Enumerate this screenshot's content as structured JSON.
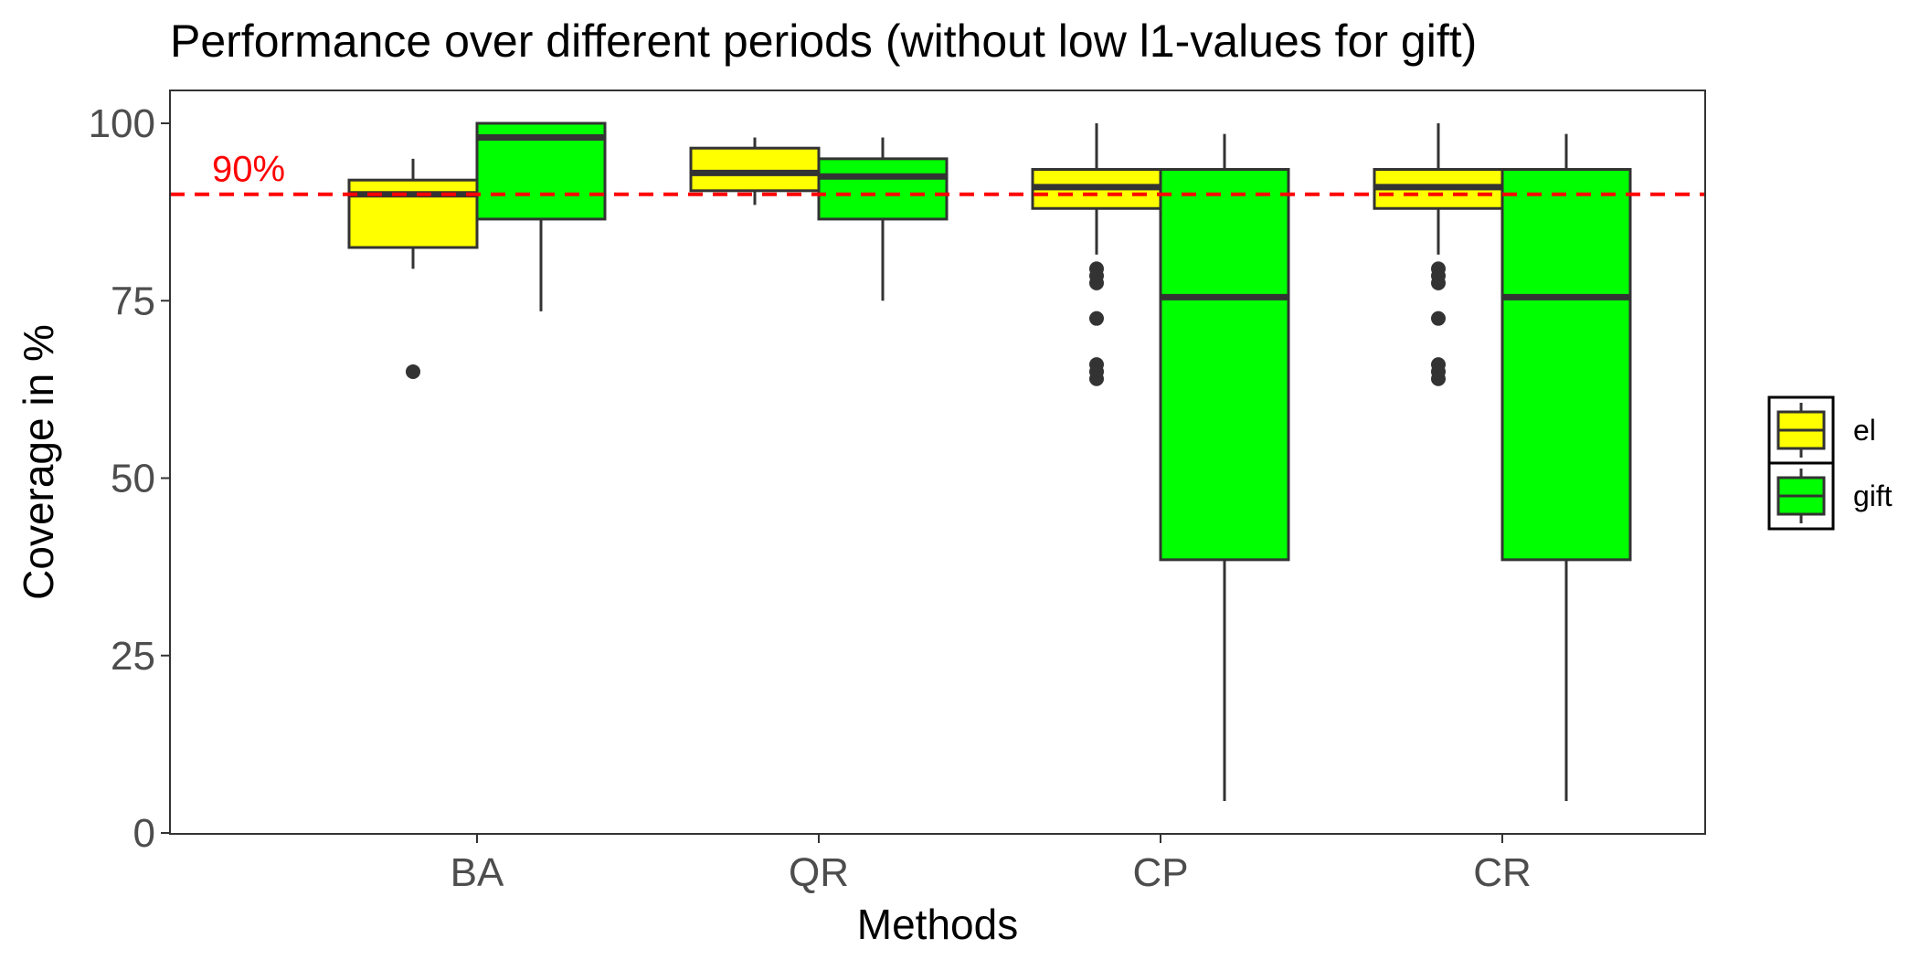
{
  "chart_data": {
    "type": "boxplot",
    "title": "Performance over different periods (without low l1-values for gift)",
    "xlabel": "Methods",
    "ylabel": "Coverage in %",
    "categories": [
      "BA",
      "QR",
      "CP",
      "CR"
    ],
    "ylim": [
      0,
      100
    ],
    "yticks": [
      0,
      25,
      50,
      75,
      100
    ],
    "grid": false,
    "legend_position": "right",
    "reference_line": {
      "value": 90,
      "label": "90%",
      "color": "#ff0000",
      "style": "dashed"
    },
    "series": [
      {
        "name": "el",
        "color": "#ffff00",
        "boxes": [
          {
            "category": "BA",
            "whisker_low": 79.5,
            "q1": 82.5,
            "median": 90,
            "q3": 92,
            "whisker_high": 95,
            "outliers": [
              65
            ]
          },
          {
            "category": "QR",
            "whisker_low": 88.5,
            "q1": 90.5,
            "median": 93,
            "q3": 96.5,
            "whisker_high": 98,
            "outliers": []
          },
          {
            "category": "CP",
            "whisker_low": 81.5,
            "q1": 88,
            "median": 91,
            "q3": 93.5,
            "whisker_high": 100,
            "outliers": [
              79.5,
              78.5,
              77.5,
              72.5,
              66,
              65,
              64
            ]
          },
          {
            "category": "CR",
            "whisker_low": 81.5,
            "q1": 88,
            "median": 91,
            "q3": 93.5,
            "whisker_high": 100,
            "outliers": [
              79.5,
              78.5,
              77.5,
              72.5,
              66,
              65,
              64
            ]
          }
        ]
      },
      {
        "name": "gift",
        "color": "#00ff00",
        "boxes": [
          {
            "category": "BA",
            "whisker_low": 73.5,
            "q1": 86.5,
            "median": 98,
            "q3": 100,
            "whisker_high": 100,
            "outliers": []
          },
          {
            "category": "QR",
            "whisker_low": 75,
            "q1": 86.5,
            "median": 92.5,
            "q3": 95,
            "whisker_high": 98,
            "outliers": []
          },
          {
            "category": "CP",
            "whisker_low": 4.5,
            "q1": 38.5,
            "median": 75.5,
            "q3": 93.5,
            "whisker_high": 98.5,
            "outliers": []
          },
          {
            "category": "CR",
            "whisker_low": 4.5,
            "q1": 38.5,
            "median": 75.5,
            "q3": 93.5,
            "whisker_high": 98.5,
            "outliers": []
          }
        ]
      }
    ]
  }
}
